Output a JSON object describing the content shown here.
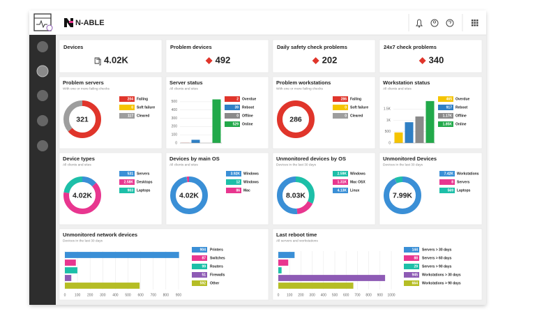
{
  "header": {
    "logo": "N-ABLE"
  },
  "kpis": [
    {
      "title": "Devices",
      "value": "4.02K"
    },
    {
      "title": "Problem devices",
      "value": "492"
    },
    {
      "title": "Daily safety check problems",
      "value": "202"
    },
    {
      "title": "24x7 check problems",
      "value": "340"
    }
  ],
  "charts": [
    {
      "type": "donut",
      "title": "Problem servers",
      "subtitle": "With one or more failing checks",
      "center": "321",
      "items": [
        {
          "name": "Failing",
          "value": 204,
          "color": "#e0352b"
        },
        {
          "name": "Soft failure",
          "value": 0,
          "color": "#f5c400"
        },
        {
          "name": "Cleared",
          "value": 117,
          "color": "#9e9e9e"
        }
      ]
    },
    {
      "type": "bar",
      "title": "Server status",
      "subtitle": "All clients and sites",
      "ylim": [
        0,
        550
      ],
      "yticks": [
        0,
        100,
        200,
        300,
        400,
        500
      ],
      "items": [
        {
          "name": "Overdue",
          "value": 2,
          "color": "#e0352b"
        },
        {
          "name": "Reboot",
          "value": 39,
          "color": "#2f7fc4"
        },
        {
          "name": "Offline",
          "value": 0,
          "color": "#8a8a8a"
        },
        {
          "name": "Online",
          "value": 529,
          "color": "#22a94a"
        }
      ]
    },
    {
      "type": "donut",
      "title": "Problem workstations",
      "subtitle": "With one or more failing checks",
      "center": "286",
      "items": [
        {
          "name": "Failing",
          "value": 286,
          "color": "#e0352b"
        },
        {
          "name": "Soft failure",
          "value": 0,
          "color": "#f5c400"
        },
        {
          "name": "Cleared",
          "value": 0,
          "color": "#9e9e9e"
        }
      ]
    },
    {
      "type": "bar",
      "title": "Workstation status",
      "subtitle": "All clients and sites",
      "ylim": [
        0,
        2000
      ],
      "yticks": [
        0,
        500,
        {
          "value": 1000,
          "label": "1K"
        },
        {
          "value": 1500,
          "label": "1.5K"
        }
      ],
      "items": [
        {
          "name": "Overdue",
          "value": 465,
          "color": "#f5c400"
        },
        {
          "name": "Reboot",
          "value": 917,
          "color": "#2f7fc4"
        },
        {
          "name": "Offline",
          "value": 1170,
          "label": "1.17K",
          "color": "#8a8a8a"
        },
        {
          "name": "Online",
          "value": 1850,
          "label": "1.85K",
          "color": "#22a94a"
        }
      ]
    },
    {
      "type": "donut",
      "title": "Device types",
      "subtitle": "All clients and sites",
      "center": "4.02K",
      "items": [
        {
          "name": "Servers",
          "value": 531,
          "color": "#3a8fd6"
        },
        {
          "name": "Desktops",
          "value": 2580,
          "label": "2.58K",
          "color": "#e8368f"
        },
        {
          "name": "Laptops",
          "value": 903,
          "color": "#1dbfa8"
        }
      ]
    },
    {
      "type": "donut",
      "title": "Devices by main OS",
      "subtitle": "All clients and sites",
      "center": "4.02K",
      "items": [
        {
          "name": "Windows",
          "value": 3920,
          "label": "3.92K",
          "color": "#3a8fd6"
        },
        {
          "name": "Windows",
          "value": 12,
          "color": "#1dbfa8"
        },
        {
          "name": "Mac",
          "value": 86,
          "color": "#e8368f"
        }
      ]
    },
    {
      "type": "donut",
      "title": "Unmonitored devices by OS",
      "subtitle": "Devices in the last 30 days",
      "center": "8.03K",
      "items": [
        {
          "name": "Windows",
          "value": 2590,
          "label": "2.59K",
          "color": "#1dbfa8"
        },
        {
          "name": "Mac OSX",
          "value": 1310,
          "label": "1.31K",
          "color": "#e8368f"
        },
        {
          "name": "Linux",
          "value": 4130,
          "label": "4.13K",
          "color": "#3a8fd6"
        }
      ]
    },
    {
      "type": "donut",
      "title": "Unmonitored Devices",
      "subtitle": "Devices in the last 30 days",
      "center": "7.99K",
      "items": [
        {
          "name": "Workstations",
          "value": 7420,
          "label": "7.42K",
          "color": "#3a8fd6"
        },
        {
          "name": "Servers",
          "value": 8,
          "color": "#e8368f"
        },
        {
          "name": "Laptops",
          "value": 569,
          "color": "#1dbfa8"
        }
      ]
    },
    {
      "type": "hbar",
      "title": "Unmonitored network devices",
      "subtitle": "Devices in the last 30 days",
      "xlim": [
        0,
        950
      ],
      "xticks": [
        0,
        100,
        200,
        300,
        400,
        500,
        600,
        700,
        800,
        900
      ],
      "items": [
        {
          "name": "Printers",
          "value": 904,
          "color": "#3a8fd6"
        },
        {
          "name": "Switches",
          "value": 87,
          "color": "#e8368f"
        },
        {
          "name": "Routers",
          "value": 99,
          "color": "#1dbfa8"
        },
        {
          "name": "Firewalls",
          "value": 51,
          "color": "#8e5bb5"
        },
        {
          "name": "Other",
          "value": 592,
          "color": "#b5bd25"
        }
      ]
    },
    {
      "type": "hbar",
      "title": "Last reboot time",
      "subtitle": "All servers and workstations",
      "xlim": [
        0,
        1000
      ],
      "xticks": [
        0,
        100,
        200,
        300,
        400,
        500,
        600,
        700,
        800,
        900,
        1000
      ],
      "items": [
        {
          "name": "Servers > 30 days",
          "value": 144,
          "color": "#3a8fd6"
        },
        {
          "name": "Servers > 60 days",
          "value": 88,
          "color": "#e8368f"
        },
        {
          "name": "Servers > 90 days",
          "value": 29,
          "color": "#1dbfa8"
        },
        {
          "name": "Workstations > 30 days",
          "value": 945,
          "color": "#8e5bb5"
        },
        {
          "name": "Workstations > 90 days",
          "value": 664,
          "color": "#b5bd25"
        }
      ]
    }
  ]
}
